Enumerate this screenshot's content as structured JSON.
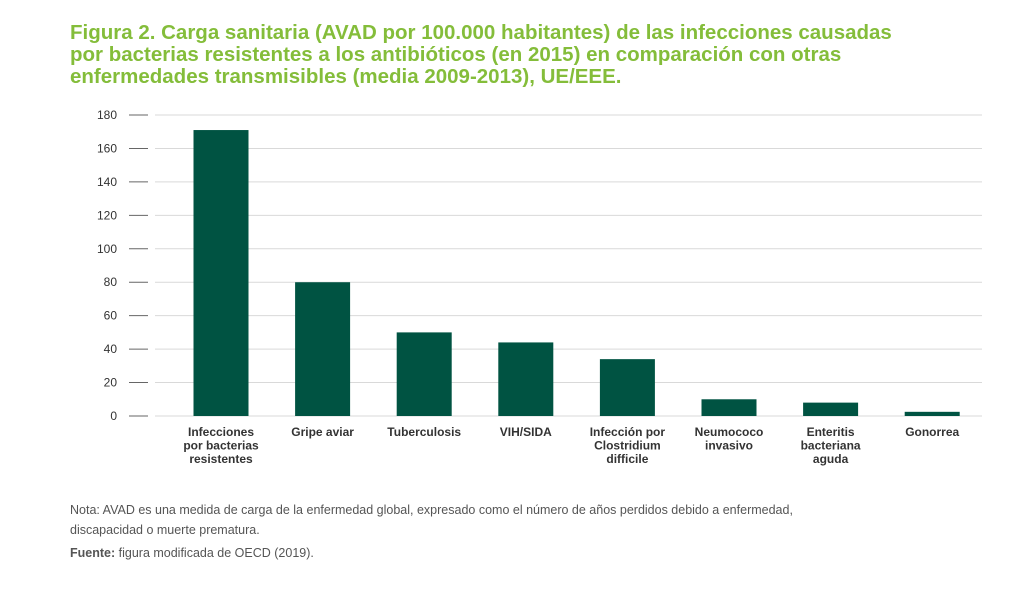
{
  "title_lines": [
    "Figura 2. Carga sanitaria (AVAD por 100.000 habitantes) de las infecciones causadas",
    "por bacterias resistentes a los antibióticos (en 2015) en comparación con otras",
    "enfermedades transmisibles (media 2009-2013), UE/EEE."
  ],
  "note_lines": [
    "Nota: AVAD es una medida de carga de la enfermedad global, expresado como el número de años perdidos debido a enfermedad,",
    "discapacidad o muerte prematura."
  ],
  "source": {
    "label": "Fuente:",
    "text": "figura modificada de OECD (2019)."
  },
  "colors": {
    "bar": "#005342",
    "title": "#84bd3a",
    "grid": "#d9d9d9",
    "text": "#333333"
  },
  "chart_data": {
    "type": "bar",
    "title": "Figura 2. Carga sanitaria (AVAD por 100.000 habitantes) de las infecciones causadas por bacterias resistentes a los antibióticos (en 2015) en comparación con otras enfermedades transmisibles (media 2009-2013), UE/EEE.",
    "categories": [
      [
        "Infecciones",
        "por bacterias",
        "resistentes"
      ],
      [
        "Gripe aviar"
      ],
      [
        "Tuberculosis"
      ],
      [
        "VIH/SIDA"
      ],
      [
        "Infección por",
        "Clostridium",
        "difficile"
      ],
      [
        "Neumococo",
        "invasivo"
      ],
      [
        "Enteritis",
        "bacteriana",
        "aguda"
      ],
      [
        "Gonorrea"
      ]
    ],
    "values": [
      171,
      80,
      50,
      44,
      34,
      10,
      8,
      2.5
    ],
    "ylim": [
      0,
      180
    ],
    "yticks": [
      0,
      20,
      40,
      60,
      80,
      100,
      120,
      140,
      160,
      180
    ],
    "xlabel": "",
    "ylabel": "",
    "grid": true
  }
}
